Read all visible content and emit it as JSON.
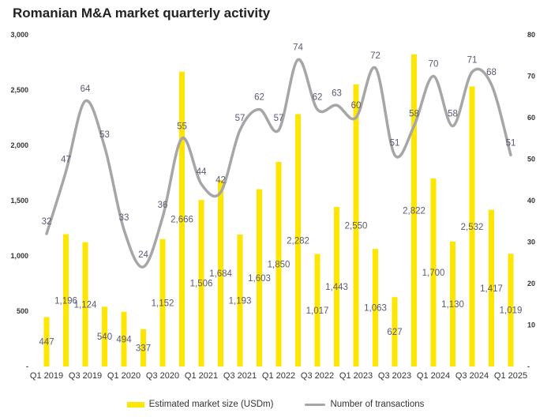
{
  "chart_data": {
    "type": "bar",
    "title": "Romanian M&A market quarterly activity",
    "x_tick_labels": [
      "Q1 2019",
      "Q3 2019",
      "Q1 2020",
      "Q3 2020",
      "Q1 2021",
      "Q3 2021",
      "Q1 2022",
      "Q3 2022",
      "Q1 2023",
      "Q3 2023",
      "Q1 2024",
      "Q3 2024",
      "Q1 2025"
    ],
    "y_left": {
      "range": [
        0,
        3000
      ],
      "ticks": [
        "-",
        "500",
        "1,000",
        "1,500",
        "2,000",
        "2,500",
        "3,000"
      ]
    },
    "y_right": {
      "range": [
        0,
        80
      ],
      "ticks": [
        "-",
        "10",
        "20",
        "30",
        "40",
        "50",
        "60",
        "70",
        "80"
      ]
    },
    "series": [
      {
        "name": "Estimated market size (USDm)",
        "type": "bar",
        "axis": "left",
        "color": "#FFE600",
        "values": [
          447,
          1196,
          1124,
          540,
          494,
          337,
          1152,
          2666,
          1506,
          1684,
          1193,
          1603,
          1850,
          2282,
          1017,
          1443,
          2550,
          1063,
          627,
          2822,
          1700,
          1130,
          2532,
          1417,
          1019
        ],
        "labels": [
          "447",
          "1,196",
          "1,124",
          "540",
          "494",
          "337",
          "1,152",
          "2,666",
          "1,506",
          "1,684",
          "1,193",
          "1,603",
          "1,850",
          "2,282",
          "1,017",
          "1,443",
          "2,550",
          "1,063",
          "627",
          "2,822",
          "1,700",
          "1,130",
          "2,532",
          "1,417",
          "1,019"
        ]
      },
      {
        "name": "Number of transactions",
        "type": "line",
        "axis": "right",
        "color": "#A6A6A6",
        "values": [
          32,
          47,
          64,
          53,
          33,
          24,
          36,
          55,
          44,
          42,
          57,
          62,
          57,
          74,
          62,
          63,
          60,
          72,
          51,
          58,
          70,
          58,
          71,
          68,
          51
        ]
      }
    ],
    "legend": "bottom"
  }
}
